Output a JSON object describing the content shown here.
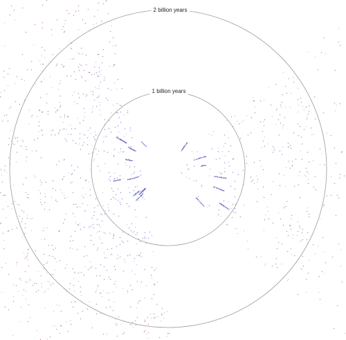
{
  "rings": [
    {
      "label": "2 billion years"
    },
    {
      "label": "1 billion years"
    }
  ],
  "colors": {
    "near": "#4a4ab8",
    "mid": "#7a4aa8",
    "far": "#b04a5a",
    "ring": "#9a9a9a",
    "background": "#ffffff"
  }
}
